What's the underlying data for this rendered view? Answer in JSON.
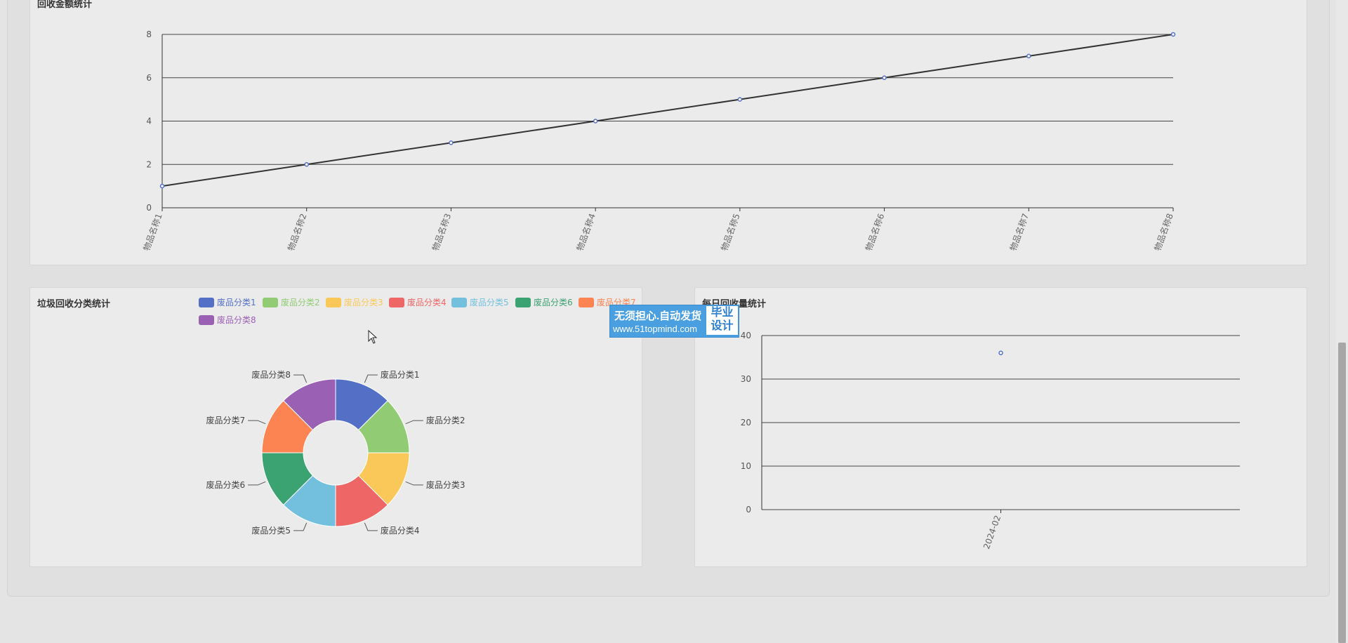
{
  "colors": {
    "page_bg": "#e4e4e4",
    "card_bg": "#ecebeb",
    "line_color": "#333333",
    "point_color": "#5470c6",
    "pie_palette": [
      "#5470c6",
      "#91cc75",
      "#fac858",
      "#ee6666",
      "#73c0de",
      "#3ba272",
      "#fc8452",
      "#9a60b4"
    ]
  },
  "cards": {
    "top": {
      "title": "回收金额统计"
    },
    "pie": {
      "title": "垃圾回收分类统计"
    },
    "daily": {
      "title": "每日回收量统计"
    }
  },
  "watermark": {
    "line1": "无须担心.自动发货",
    "line2": "www.51topmind.com",
    "box_line1": "毕业",
    "box_line2": "设计"
  },
  "chart_data": [
    {
      "type": "line",
      "title": "回收金额统计",
      "categories": [
        "物品名称1",
        "物品名称2",
        "物品名称3",
        "物品名称4",
        "物品名称5",
        "物品名称6",
        "物品名称7",
        "物品名称8"
      ],
      "series": [
        {
          "values": [
            1,
            2,
            3,
            4,
            5,
            6,
            7,
            8
          ]
        }
      ],
      "yticks": [
        0,
        2,
        4,
        6,
        8
      ],
      "ylim": [
        0,
        8
      ],
      "grid": true
    },
    {
      "type": "pie",
      "title": "垃圾回收分类统计",
      "labels": [
        "废品分类1",
        "废品分类2",
        "废品分类3",
        "废品分类4",
        "废品分类5",
        "废品分类6",
        "废品分类7",
        "废品分类8"
      ],
      "values": [
        1,
        1,
        1,
        1,
        1,
        1,
        1,
        1
      ],
      "donut": true,
      "legend_position": "top"
    },
    {
      "type": "scatter",
      "title": "每日回收量统计",
      "categories": [
        "2024-02"
      ],
      "series": [
        {
          "values": [
            36
          ]
        }
      ],
      "yticks": [
        0,
        10,
        20,
        30,
        40
      ],
      "ylim": [
        0,
        40
      ],
      "grid": true
    }
  ]
}
